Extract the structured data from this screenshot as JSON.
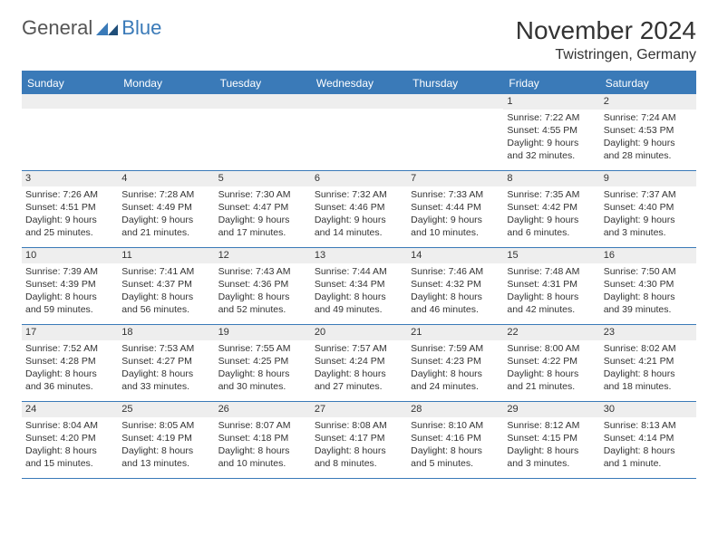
{
  "logo": {
    "text1": "General",
    "text2": "Blue"
  },
  "title": "November 2024",
  "location": "Twistringen, Germany",
  "colors": {
    "accent": "#3a7ab8",
    "header_bg": "#3a7ab8",
    "header_text": "#ffffff",
    "cell_num_bg": "#eeeeee",
    "text": "#333333",
    "background": "#ffffff"
  },
  "day_names": [
    "Sunday",
    "Monday",
    "Tuesday",
    "Wednesday",
    "Thursday",
    "Friday",
    "Saturday"
  ],
  "weeks": [
    [
      null,
      null,
      null,
      null,
      null,
      {
        "n": "1",
        "sr": "Sunrise: 7:22 AM",
        "ss": "Sunset: 4:55 PM",
        "dl1": "Daylight: 9 hours",
        "dl2": "and 32 minutes."
      },
      {
        "n": "2",
        "sr": "Sunrise: 7:24 AM",
        "ss": "Sunset: 4:53 PM",
        "dl1": "Daylight: 9 hours",
        "dl2": "and 28 minutes."
      }
    ],
    [
      {
        "n": "3",
        "sr": "Sunrise: 7:26 AM",
        "ss": "Sunset: 4:51 PM",
        "dl1": "Daylight: 9 hours",
        "dl2": "and 25 minutes."
      },
      {
        "n": "4",
        "sr": "Sunrise: 7:28 AM",
        "ss": "Sunset: 4:49 PM",
        "dl1": "Daylight: 9 hours",
        "dl2": "and 21 minutes."
      },
      {
        "n": "5",
        "sr": "Sunrise: 7:30 AM",
        "ss": "Sunset: 4:47 PM",
        "dl1": "Daylight: 9 hours",
        "dl2": "and 17 minutes."
      },
      {
        "n": "6",
        "sr": "Sunrise: 7:32 AM",
        "ss": "Sunset: 4:46 PM",
        "dl1": "Daylight: 9 hours",
        "dl2": "and 14 minutes."
      },
      {
        "n": "7",
        "sr": "Sunrise: 7:33 AM",
        "ss": "Sunset: 4:44 PM",
        "dl1": "Daylight: 9 hours",
        "dl2": "and 10 minutes."
      },
      {
        "n": "8",
        "sr": "Sunrise: 7:35 AM",
        "ss": "Sunset: 4:42 PM",
        "dl1": "Daylight: 9 hours",
        "dl2": "and 6 minutes."
      },
      {
        "n": "9",
        "sr": "Sunrise: 7:37 AM",
        "ss": "Sunset: 4:40 PM",
        "dl1": "Daylight: 9 hours",
        "dl2": "and 3 minutes."
      }
    ],
    [
      {
        "n": "10",
        "sr": "Sunrise: 7:39 AM",
        "ss": "Sunset: 4:39 PM",
        "dl1": "Daylight: 8 hours",
        "dl2": "and 59 minutes."
      },
      {
        "n": "11",
        "sr": "Sunrise: 7:41 AM",
        "ss": "Sunset: 4:37 PM",
        "dl1": "Daylight: 8 hours",
        "dl2": "and 56 minutes."
      },
      {
        "n": "12",
        "sr": "Sunrise: 7:43 AM",
        "ss": "Sunset: 4:36 PM",
        "dl1": "Daylight: 8 hours",
        "dl2": "and 52 minutes."
      },
      {
        "n": "13",
        "sr": "Sunrise: 7:44 AM",
        "ss": "Sunset: 4:34 PM",
        "dl1": "Daylight: 8 hours",
        "dl2": "and 49 minutes."
      },
      {
        "n": "14",
        "sr": "Sunrise: 7:46 AM",
        "ss": "Sunset: 4:32 PM",
        "dl1": "Daylight: 8 hours",
        "dl2": "and 46 minutes."
      },
      {
        "n": "15",
        "sr": "Sunrise: 7:48 AM",
        "ss": "Sunset: 4:31 PM",
        "dl1": "Daylight: 8 hours",
        "dl2": "and 42 minutes."
      },
      {
        "n": "16",
        "sr": "Sunrise: 7:50 AM",
        "ss": "Sunset: 4:30 PM",
        "dl1": "Daylight: 8 hours",
        "dl2": "and 39 minutes."
      }
    ],
    [
      {
        "n": "17",
        "sr": "Sunrise: 7:52 AM",
        "ss": "Sunset: 4:28 PM",
        "dl1": "Daylight: 8 hours",
        "dl2": "and 36 minutes."
      },
      {
        "n": "18",
        "sr": "Sunrise: 7:53 AM",
        "ss": "Sunset: 4:27 PM",
        "dl1": "Daylight: 8 hours",
        "dl2": "and 33 minutes."
      },
      {
        "n": "19",
        "sr": "Sunrise: 7:55 AM",
        "ss": "Sunset: 4:25 PM",
        "dl1": "Daylight: 8 hours",
        "dl2": "and 30 minutes."
      },
      {
        "n": "20",
        "sr": "Sunrise: 7:57 AM",
        "ss": "Sunset: 4:24 PM",
        "dl1": "Daylight: 8 hours",
        "dl2": "and 27 minutes."
      },
      {
        "n": "21",
        "sr": "Sunrise: 7:59 AM",
        "ss": "Sunset: 4:23 PM",
        "dl1": "Daylight: 8 hours",
        "dl2": "and 24 minutes."
      },
      {
        "n": "22",
        "sr": "Sunrise: 8:00 AM",
        "ss": "Sunset: 4:22 PM",
        "dl1": "Daylight: 8 hours",
        "dl2": "and 21 minutes."
      },
      {
        "n": "23",
        "sr": "Sunrise: 8:02 AM",
        "ss": "Sunset: 4:21 PM",
        "dl1": "Daylight: 8 hours",
        "dl2": "and 18 minutes."
      }
    ],
    [
      {
        "n": "24",
        "sr": "Sunrise: 8:04 AM",
        "ss": "Sunset: 4:20 PM",
        "dl1": "Daylight: 8 hours",
        "dl2": "and 15 minutes."
      },
      {
        "n": "25",
        "sr": "Sunrise: 8:05 AM",
        "ss": "Sunset: 4:19 PM",
        "dl1": "Daylight: 8 hours",
        "dl2": "and 13 minutes."
      },
      {
        "n": "26",
        "sr": "Sunrise: 8:07 AM",
        "ss": "Sunset: 4:18 PM",
        "dl1": "Daylight: 8 hours",
        "dl2": "and 10 minutes."
      },
      {
        "n": "27",
        "sr": "Sunrise: 8:08 AM",
        "ss": "Sunset: 4:17 PM",
        "dl1": "Daylight: 8 hours",
        "dl2": "and 8 minutes."
      },
      {
        "n": "28",
        "sr": "Sunrise: 8:10 AM",
        "ss": "Sunset: 4:16 PM",
        "dl1": "Daylight: 8 hours",
        "dl2": "and 5 minutes."
      },
      {
        "n": "29",
        "sr": "Sunrise: 8:12 AM",
        "ss": "Sunset: 4:15 PM",
        "dl1": "Daylight: 8 hours",
        "dl2": "and 3 minutes."
      },
      {
        "n": "30",
        "sr": "Sunrise: 8:13 AM",
        "ss": "Sunset: 4:14 PM",
        "dl1": "Daylight: 8 hours",
        "dl2": "and 1 minute."
      }
    ]
  ]
}
